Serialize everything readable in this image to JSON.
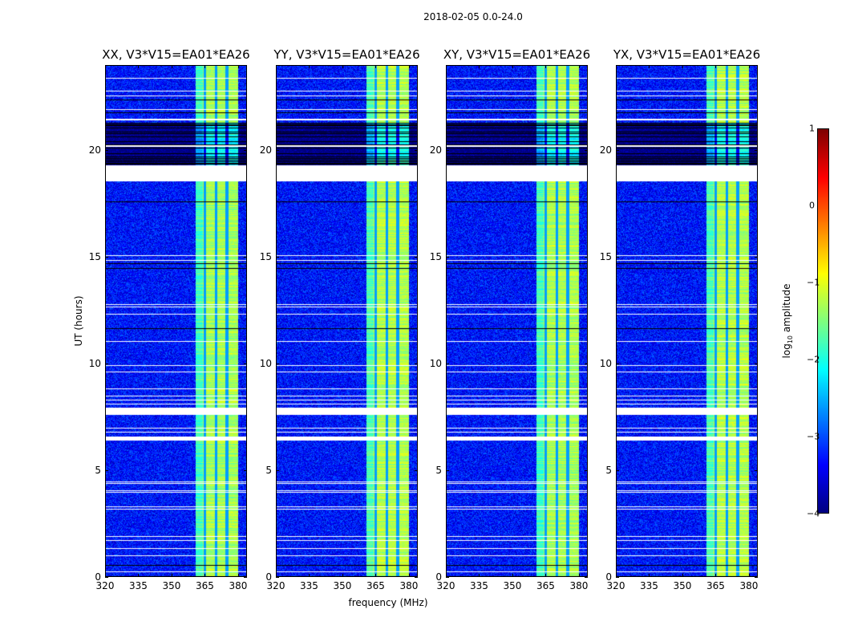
{
  "chart_data": {
    "type": "heatmap",
    "title": "2018-02-05 0.0-24.0",
    "panels": [
      {
        "title": "XX, V3*V15=EA01*EA26"
      },
      {
        "title": "YY, V3*V15=EA01*EA26"
      },
      {
        "title": "XY, V3*V15=EA01*EA26"
      },
      {
        "title": "YX, V3*V15=EA01*EA26"
      }
    ],
    "xlabel": "frequency (MHz)",
    "ylabel": "UT (hours)",
    "xlim": [
      320,
      384
    ],
    "ylim": [
      0,
      24
    ],
    "xticks": [
      320,
      335,
      350,
      365,
      380
    ],
    "yticks": [
      0,
      5,
      10,
      15,
      20
    ],
    "colorbar": {
      "label_prefix": "log",
      "label_sub": "10",
      "label_suffix": " amplitude",
      "range": [
        -4,
        1
      ],
      "ticks": [
        "1",
        "0",
        "−1",
        "−2",
        "−3",
        "−4"
      ],
      "colormap": "jet"
    },
    "signal_band_mhz": [
      361,
      380
    ],
    "dark_channels_mhz": [
      365,
      370,
      375
    ],
    "background_log_amp": -3.3,
    "band_log_amp": -1.3,
    "flagged_gaps_hours": [
      [
        18.55,
        19.3
      ],
      [
        7.6,
        7.95
      ],
      [
        6.45,
        6.6
      ]
    ],
    "noisy_interval_hours": [
      19.3,
      21.3
    ]
  }
}
